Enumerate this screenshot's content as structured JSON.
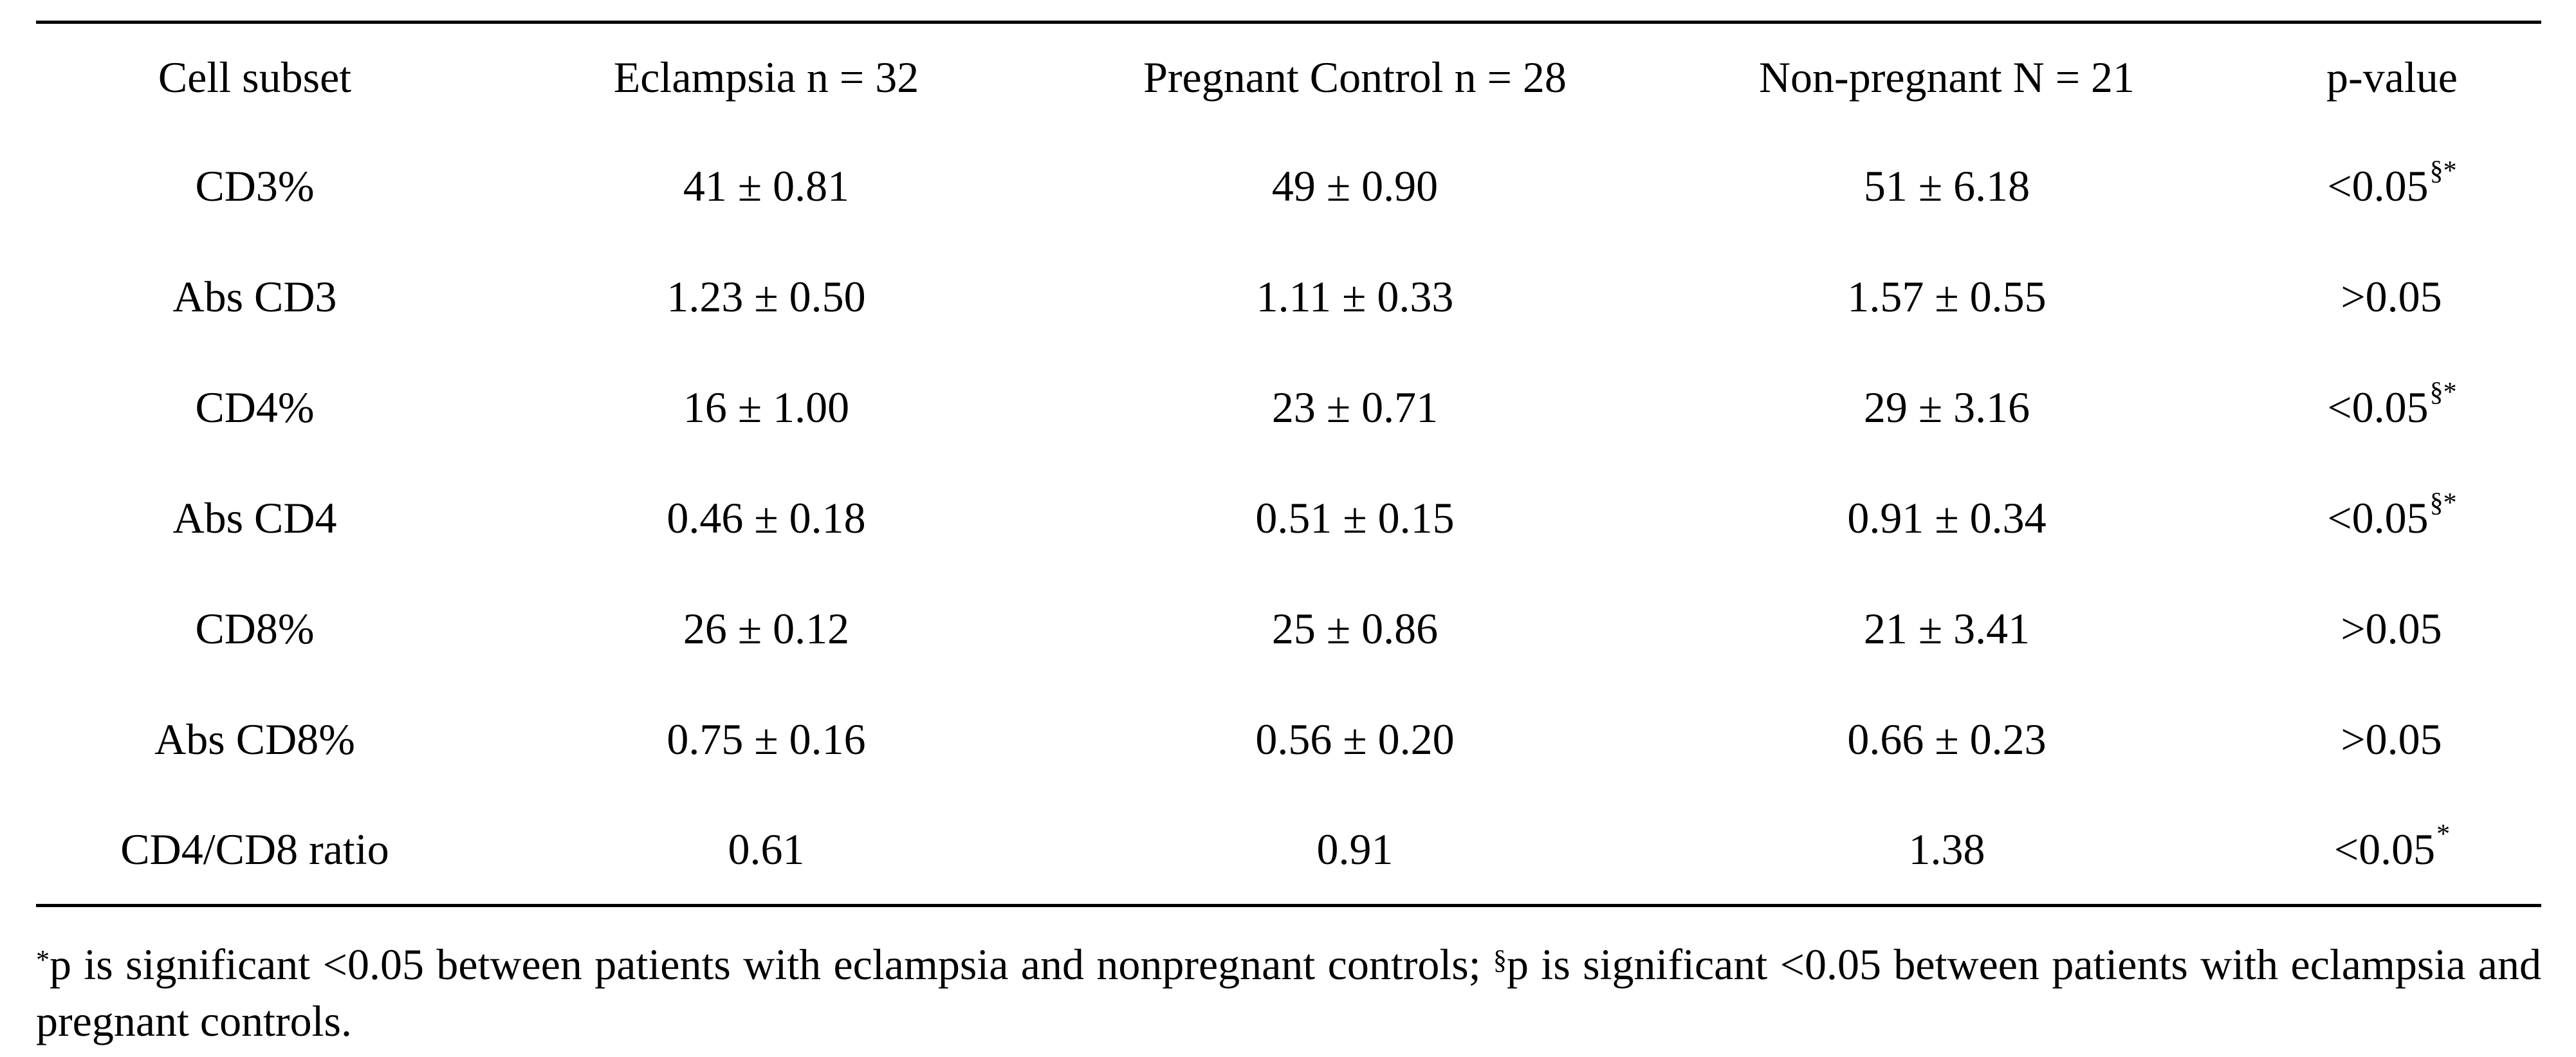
{
  "table": {
    "headers": [
      "Cell subset",
      "Eclampsia n = 32",
      "Pregnant Control n = 28",
      "Non-pregnant N = 21",
      "p-value"
    ],
    "rows": [
      {
        "subset": "CD3%",
        "eclampsia": "41 ± 0.81",
        "pregnant": "49 ± 0.90",
        "nonpregnant": "51 ± 6.18",
        "p": "<0.05",
        "p_mark": "§*"
      },
      {
        "subset": "Abs CD3",
        "eclampsia": "1.23 ± 0.50",
        "pregnant": "1.11 ± 0.33",
        "nonpregnant": "1.57 ± 0.55",
        "p": ">0.05",
        "p_mark": ""
      },
      {
        "subset": "CD4%",
        "eclampsia": "16 ± 1.00",
        "pregnant": "23 ± 0.71",
        "nonpregnant": "29 ± 3.16",
        "p": "<0.05",
        "p_mark": "§*"
      },
      {
        "subset": "Abs CD4",
        "eclampsia": "0.46 ± 0.18",
        "pregnant": "0.51 ± 0.15",
        "nonpregnant": "0.91 ± 0.34",
        "p": "<0.05",
        "p_mark": "§*"
      },
      {
        "subset": "CD8%",
        "eclampsia": "26 ± 0.12",
        "pregnant": "25 ± 0.86",
        "nonpregnant": "21 ± 3.41",
        "p": ">0.05",
        "p_mark": ""
      },
      {
        "subset": "Abs CD8%",
        "eclampsia": "0.75 ± 0.16",
        "pregnant": "0.56 ± 0.20",
        "nonpregnant": "0.66 ± 0.23",
        "p": ">0.05",
        "p_mark": ""
      },
      {
        "subset": "CD4/CD8 ratio",
        "eclampsia": "0.61",
        "pregnant": "0.91",
        "nonpregnant": "1.38",
        "p": "<0.05",
        "p_mark": "*"
      }
    ]
  },
  "footnote": {
    "mark1": "*",
    "text1": "p is significant <0.05 between patients with eclampsia and nonpregnant controls; ",
    "mark2": "§",
    "text2": "p is significant <0.05 between patients with eclampsia and pregnant controls."
  }
}
